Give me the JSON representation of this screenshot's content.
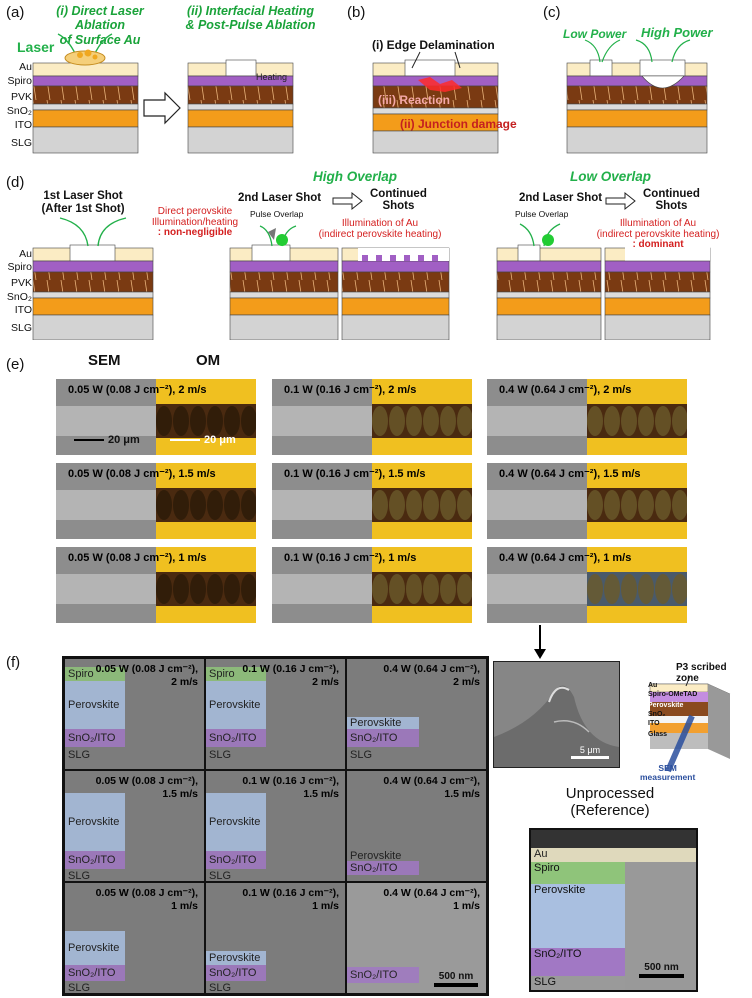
{
  "panels": {
    "a": "(a)",
    "b": "(b)",
    "c": "(c)",
    "d": "(d)",
    "e": "(e)",
    "f": "(f)"
  },
  "a": {
    "step_i": "(i) Direct Laser Ablation",
    "step_i_2": "of Surface Au",
    "step_ii": "(ii) Interfacial Heating",
    "step_ii_2": "& Post-Pulse Ablation",
    "laser": "Laser",
    "heating": "Heating"
  },
  "layers": {
    "au": "Au",
    "spiro": "Spiro",
    "pvk": "PVK",
    "sno2": "SnO₂",
    "ito": "ITO",
    "slg": "SLG"
  },
  "b": {
    "edge": "(i) Edge Delamination",
    "reaction": "(iii) Reaction",
    "junction": "(ii) Junction damage"
  },
  "c": {
    "low": "Low Power",
    "high": "High Power"
  },
  "d": {
    "first_shot": "1st Laser Shot",
    "first_shot_2": "(After 1st Shot)",
    "high_overlap": "High Overlap",
    "low_overlap": "Low Overlap",
    "second_shot": "2nd Laser Shot",
    "continued": "Continued",
    "shots": "Shots",
    "pulse_overlap": "Pulse Overlap",
    "direct_pvk": "Direct perovskite",
    "illum_heating": "Illumination/heating",
    "non_negligible": ": non-negligible",
    "illum_au": "Illumination of Au",
    "indirect": "(indirect perovskite heating)",
    "dominant": ": dominant"
  },
  "e": {
    "sem": "SEM",
    "om": "OM",
    "scale": "20 μm",
    "rows": [
      [
        "0.05 W (0.08 J cm⁻²), 2 m/s",
        "0.1 W (0.16 J cm⁻²), 2 m/s",
        "0.4 W (0.64 J cm⁻²), 2 m/s"
      ],
      [
        "0.05 W (0.08 J cm⁻²), 1.5 m/s",
        "0.1 W (0.16 J cm⁻²), 1.5 m/s",
        "0.4 W (0.64 J cm⁻²), 1.5 m/s"
      ],
      [
        "0.05 W (0.08 J cm⁻²), 1 m/s",
        "0.1 W (0.16 J cm⁻²), 1 m/s",
        "0.4 W (0.64 J cm⁻²), 1 m/s"
      ]
    ]
  },
  "f": {
    "cells": [
      [
        "0.05 W (0.08 J cm⁻²),",
        "2 m/s"
      ],
      [
        "0.1 W (0.16 J cm⁻²),",
        "2 m/s"
      ],
      [
        "0.4 W (0.64 J cm⁻²),",
        "2 m/s"
      ],
      [
        "0.05 W (0.08 J cm⁻²),",
        "1.5 m/s"
      ],
      [
        "0.1 W (0.16 J cm⁻²),",
        "1.5 m/s"
      ],
      [
        "0.4 W (0.64 J cm⁻²),",
        "1.5 m/s"
      ],
      [
        "0.05 W (0.08 J cm⁻²),",
        "1 m/s"
      ],
      [
        "0.1 W (0.16 J cm⁻²),",
        "1 m/s"
      ],
      [
        "0.4 W (0.64 J cm⁻²),",
        "1 m/s"
      ]
    ],
    "spiro": "Spiro",
    "perovskite": "Perovskite",
    "sno2ito": "SnO₂/ITO",
    "slg": "SLG",
    "scale_nm": "500 nm",
    "scale_um": "5 μm",
    "p3": "P3 scribed zone",
    "sem_meas": "SEM",
    "sem_meas_2": "measurement",
    "stack": [
      "Au",
      "Spiro-OMeTAD",
      "Perovskite",
      "SnO₂",
      "ITO",
      "Glass"
    ],
    "unprocessed": "Unprocessed",
    "reference": "(Reference)",
    "ref_layers": [
      "Au",
      "Spiro",
      "Perovskite",
      "SnO₂/ITO",
      "SLG"
    ]
  },
  "colors": {
    "au": "#fbecc4",
    "spiro": "#a15fc4",
    "pvk": "#7a3a12",
    "sno2": "#dcdcdc",
    "ito": "#f39c1a",
    "slg": "#d3d3d3",
    "green": "#22b04a",
    "red": "#d42020",
    "om_bg": "#f0c020"
  }
}
